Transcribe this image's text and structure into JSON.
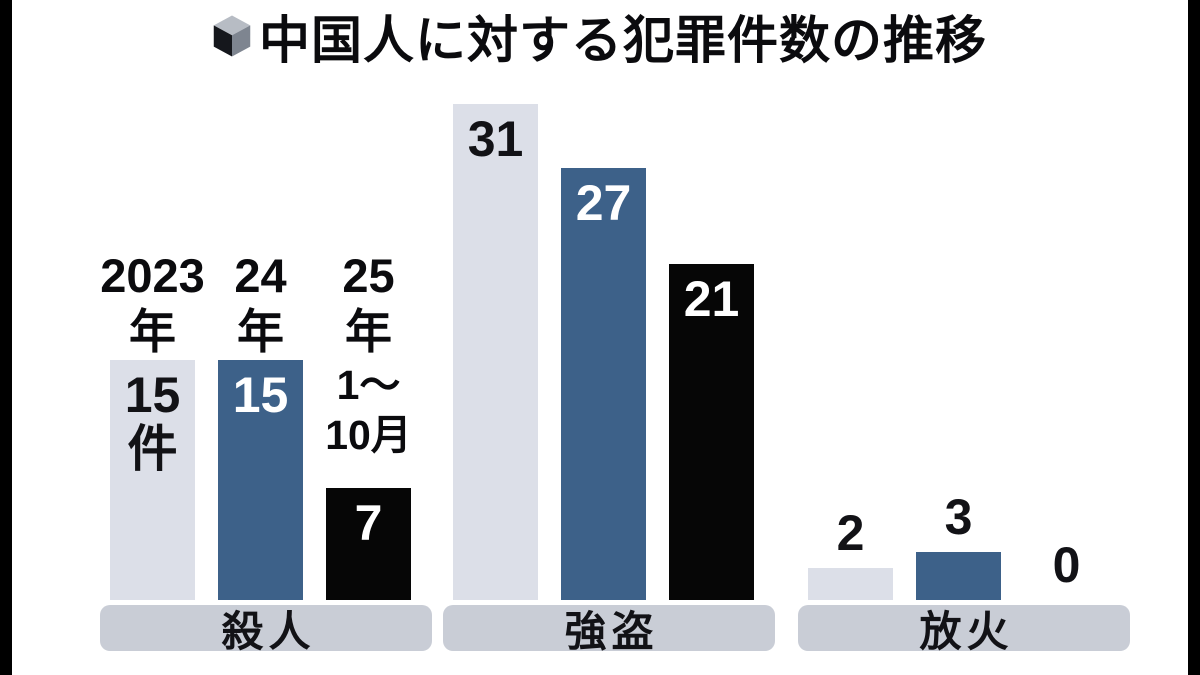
{
  "title": "中国人に対する犯罪件数の推移",
  "chart_data": {
    "type": "bar",
    "title": "中国人に対する犯罪件数の推移",
    "categories": [
      "殺人",
      "強盗",
      "放火"
    ],
    "series": [
      {
        "name": "2023年",
        "color": "#dcdfe8",
        "values": [
          15,
          31,
          2
        ]
      },
      {
        "name": "24年",
        "color": "#3d6189",
        "values": [
          15,
          27,
          3
        ]
      },
      {
        "name": "25年1〜10月",
        "color": "#060606",
        "values": [
          7,
          21,
          0
        ]
      }
    ],
    "unit": "件",
    "ylim": [
      0,
      31
    ],
    "legend_position": "above-first-group",
    "grid": false,
    "bar_labels": [
      [
        [
          "15",
          "件"
        ],
        [
          "15"
        ],
        [
          "7"
        ]
      ],
      [
        [
          "31"
        ],
        [
          "27"
        ],
        [
          "21"
        ]
      ],
      [
        [
          "2"
        ],
        [
          "3"
        ],
        [
          "0"
        ]
      ]
    ]
  },
  "year_labels": [
    {
      "lines": [
        "2023",
        "年"
      ],
      "sub_lines": []
    },
    {
      "lines": [
        "24",
        "年"
      ],
      "sub_lines": []
    },
    {
      "lines": [
        "25",
        "年"
      ],
      "sub_lines": [
        "1〜",
        "10月"
      ]
    }
  ],
  "colors": {
    "background": "#ffffff",
    "pillar": "#000000",
    "category_band": "#c9cdd6",
    "label_on_light": "#121216",
    "label_on_dark": "#ffffff"
  }
}
